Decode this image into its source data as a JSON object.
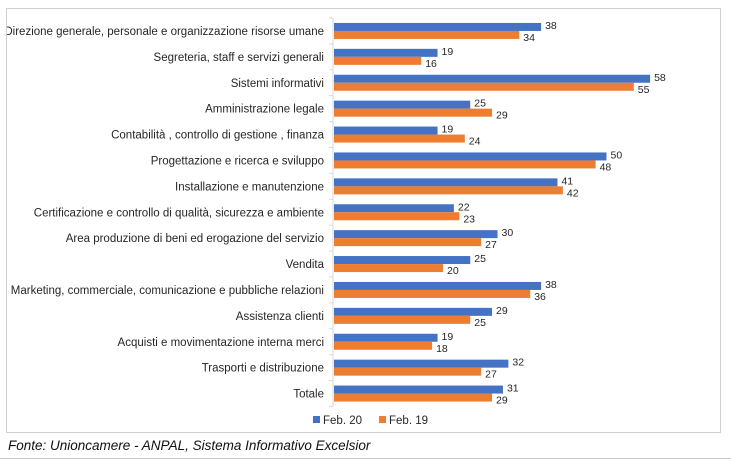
{
  "chart_data": {
    "type": "bar",
    "orientation": "horizontal",
    "title": "",
    "xlabel": "",
    "ylabel": "",
    "xlim": [
      0,
      60
    ],
    "grid": false,
    "legend_position": "bottom-center",
    "categories": [
      "Direzione generale, personale e organizzazione risorse umane",
      "Segreteria, staff e servizi generali",
      "Sistemi informativi",
      "Amministrazione legale",
      "Contabilità , controllo di gestione , finanza",
      "Progettazione e ricerca e sviluppo",
      "Installazione e manutenzione",
      "Certificazione e controllo di qualità, sicurezza e ambiente",
      "Area produzione di beni ed erogazione del servizio",
      "Vendita",
      "Marketing, commerciale, comunicazione e pubbliche relazioni",
      "Assistenza clienti",
      "Acquisti e movimentazione interna merci",
      "Trasporti e distribuzione",
      "Totale"
    ],
    "series": [
      {
        "name": "Feb. 20",
        "color": "#4472C4",
        "values": [
          38,
          19,
          58,
          25,
          19,
          50,
          41,
          22,
          30,
          25,
          38,
          29,
          19,
          32,
          31
        ]
      },
      {
        "name": "Feb. 19",
        "color": "#ED7D31",
        "values": [
          34,
          16,
          55,
          29,
          24,
          48,
          42,
          23,
          27,
          20,
          36,
          25,
          18,
          27,
          29
        ]
      }
    ]
  },
  "source_note": "Fonte: Unioncamere - ANPAL, Sistema Informativo Excelsior"
}
